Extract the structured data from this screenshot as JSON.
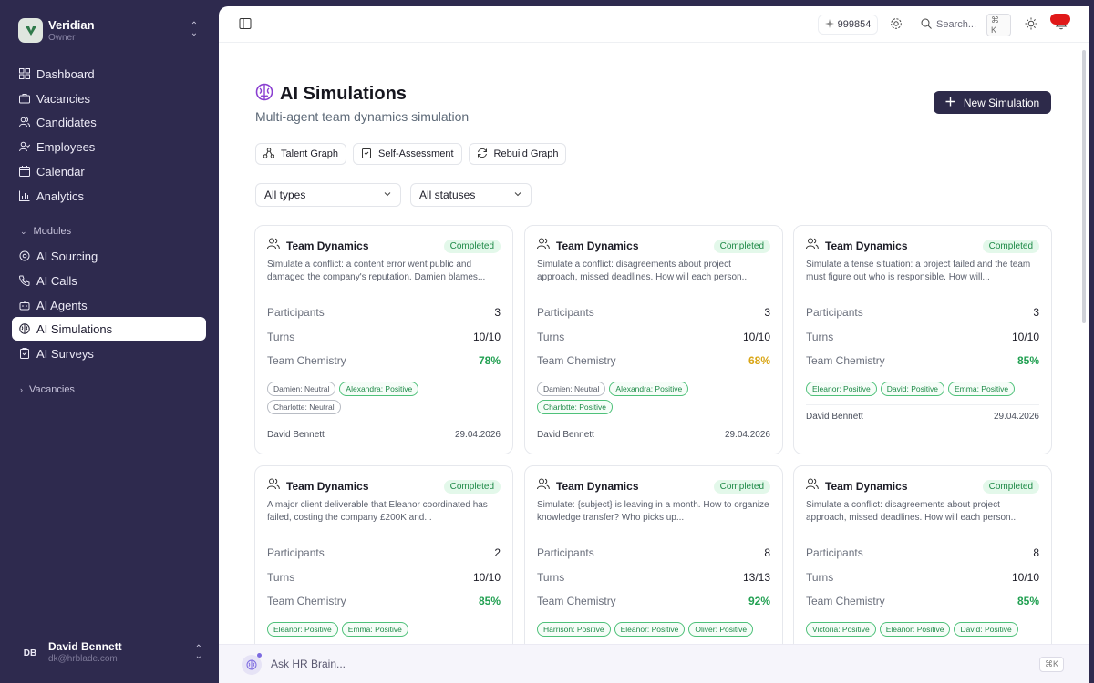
{
  "org": {
    "name": "Veridian",
    "role": "Owner"
  },
  "nav": [
    {
      "label": "Dashboard",
      "icon": "dashboard-icon"
    },
    {
      "label": "Vacancies",
      "icon": "briefcase-icon"
    },
    {
      "label": "Candidates",
      "icon": "users-icon"
    },
    {
      "label": "Employees",
      "icon": "user-check-icon"
    },
    {
      "label": "Calendar",
      "icon": "calendar-icon"
    },
    {
      "label": "Analytics",
      "icon": "chart-icon"
    }
  ],
  "modules": {
    "label": "Modules",
    "items": [
      {
        "label": "AI Sourcing",
        "icon": "sourcing-icon"
      },
      {
        "label": "AI Calls",
        "icon": "phone-icon"
      },
      {
        "label": "AI Agents",
        "icon": "bot-icon"
      },
      {
        "label": "AI Simulations",
        "icon": "brain-icon",
        "active": true
      },
      {
        "label": "AI Surveys",
        "icon": "clipboard-icon"
      }
    ]
  },
  "vacancies_section": "Vacancies",
  "user": {
    "initials": "DB",
    "name": "David Bennett",
    "email": "dk@hrblade.com"
  },
  "topbar": {
    "credits": "999854",
    "search_placeholder": "Search...",
    "search_shortcut": "⌘ K"
  },
  "page": {
    "title": "AI Simulations",
    "subtitle": "Multi-agent team dynamics simulation",
    "new_button": "New Simulation",
    "actions": [
      "Talent Graph",
      "Self-Assessment",
      "Rebuild Graph"
    ],
    "filters": [
      "All types",
      "All statuses"
    ]
  },
  "labels": {
    "participants": "Participants",
    "turns": "Turns",
    "chemistry": "Team Chemistry"
  },
  "cards": [
    {
      "title": "Team Dynamics",
      "status": "Completed",
      "desc": "Simulate a conflict: a content error went public and damaged the company's reputation. Damien blames...",
      "participants": "3",
      "turns": "10/10",
      "chemistry": "78%",
      "chem_level": "green",
      "tags": [
        {
          "t": "Damien: Neutral",
          "s": "neutral"
        },
        {
          "t": "Alexandra: Positive",
          "s": "positive"
        },
        {
          "t": "Charlotte: Neutral",
          "s": "neutral"
        }
      ],
      "author": "David Bennett",
      "date": "29.04.2026"
    },
    {
      "title": "Team Dynamics",
      "status": "Completed",
      "desc": "Simulate a conflict: disagreements about project approach, missed deadlines. How will each person...",
      "participants": "3",
      "turns": "10/10",
      "chemistry": "68%",
      "chem_level": "amber",
      "tags": [
        {
          "t": "Damien: Neutral",
          "s": "neutral"
        },
        {
          "t": "Alexandra: Positive",
          "s": "positive"
        },
        {
          "t": "Charlotte: Positive",
          "s": "positive"
        }
      ],
      "author": "David Bennett",
      "date": "29.04.2026"
    },
    {
      "title": "Team Dynamics",
      "status": "Completed",
      "desc": "Simulate a tense situation: a project failed and the team must figure out who is responsible. How will...",
      "participants": "3",
      "turns": "10/10",
      "chemistry": "85%",
      "chem_level": "green",
      "tags": [
        {
          "t": "Eleanor: Positive",
          "s": "positive"
        },
        {
          "t": "David: Positive",
          "s": "positive"
        },
        {
          "t": "Emma: Positive",
          "s": "positive"
        }
      ],
      "author": "David Bennett",
      "date": "29.04.2026"
    },
    {
      "title": "Team Dynamics",
      "status": "Completed",
      "desc": "A major client deliverable that Eleanor coordinated has failed, costing the company £200K and...",
      "participants": "2",
      "turns": "10/10",
      "chemistry": "85%",
      "chem_level": "green",
      "tags": [
        {
          "t": "Eleanor: Positive",
          "s": "positive"
        },
        {
          "t": "Emma: Positive",
          "s": "positive"
        }
      ],
      "author": "",
      "date": ""
    },
    {
      "title": "Team Dynamics",
      "status": "Completed",
      "desc": "Simulate: {subject} is leaving in a month. How to organize knowledge transfer? Who picks up...",
      "participants": "8",
      "turns": "13/13",
      "chemistry": "92%",
      "chem_level": "green",
      "tags": [
        {
          "t": "Harrison: Positive",
          "s": "positive"
        },
        {
          "t": "Eleanor: Positive",
          "s": "positive"
        },
        {
          "t": "Oliver: Positive",
          "s": "positive"
        }
      ],
      "author": "",
      "date": ""
    },
    {
      "title": "Team Dynamics",
      "status": "Completed",
      "desc": "Simulate a conflict: disagreements about project approach, missed deadlines. How will each person...",
      "participants": "8",
      "turns": "10/10",
      "chemistry": "85%",
      "chem_level": "green",
      "tags": [
        {
          "t": "Victoria: Positive",
          "s": "positive"
        },
        {
          "t": "Eleanor: Positive",
          "s": "positive"
        },
        {
          "t": "David: Positive",
          "s": "positive"
        }
      ],
      "author": "",
      "date": ""
    }
  ],
  "brain": {
    "placeholder": "Ask HR Brain...",
    "shortcut": "⌘K"
  }
}
